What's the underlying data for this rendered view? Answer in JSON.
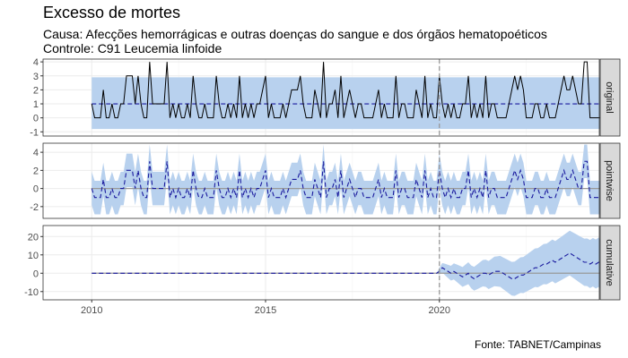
{
  "chart_data": {
    "type": "line",
    "title": "Excesso de mortes",
    "subtitle_line1": "Causa: Afecções hemorrágicas e outras doenças do sangue e dos órgãos hematopoéticos",
    "subtitle_line2": "Controle: C91 Leucemia linfoide",
    "caption": "Fonte: TABNET/Campinas",
    "intervention_x": 2020.0,
    "x_range": [
      2008.6,
      2024.6
    ],
    "x_ticks": [
      2010,
      2015,
      2020
    ],
    "x_tick_labels": [
      "2010",
      "2015",
      "2020"
    ],
    "colors": {
      "band": "#b8d1ee",
      "prediction": "#1a1a9e",
      "observed": "#000000",
      "zero_line": "#999999",
      "intervention": "#999999",
      "strip": "#d9d9d9"
    },
    "panels": [
      {
        "strip_label": "original",
        "ylim": [
          -1.3,
          4.2
        ],
        "y_ticks": [
          -1,
          0,
          1,
          2,
          3,
          4
        ],
        "y_tick_labels": [
          "-1",
          "0",
          "1",
          "2",
          "3",
          "4"
        ],
        "band": {
          "lower": -0.8,
          "upper": 2.9
        },
        "prediction_constant": 1.0,
        "observed": [
          1,
          0,
          0,
          0,
          2,
          0,
          0,
          1,
          0,
          0,
          1,
          1,
          3,
          3,
          3,
          1,
          3,
          1,
          0,
          0,
          4,
          1,
          1,
          1,
          1,
          1,
          4,
          0,
          1,
          0,
          1,
          0,
          0,
          1,
          0,
          3,
          1,
          0,
          0,
          1,
          0,
          0,
          0,
          3,
          1,
          0,
          0,
          1,
          0,
          1,
          0,
          3,
          0,
          1,
          0,
          1,
          0,
          1,
          1,
          2,
          3,
          0,
          1,
          0,
          0,
          0,
          1,
          0,
          1,
          2,
          2,
          2,
          3,
          1,
          0,
          0,
          0,
          2,
          1,
          0,
          4,
          0,
          1,
          1,
          2,
          0,
          3,
          0,
          1,
          2,
          1,
          0,
          1,
          1,
          0,
          0,
          0,
          0,
          1,
          2,
          0,
          1,
          0,
          0,
          0,
          3,
          0,
          1,
          1,
          0,
          0,
          0,
          2,
          1,
          0,
          3,
          0,
          1,
          0,
          0,
          3,
          1,
          0,
          1,
          0,
          1,
          0,
          0,
          1,
          1,
          3,
          0,
          1,
          0,
          1,
          0,
          3,
          0,
          1,
          1,
          0,
          0,
          0,
          0,
          1,
          2,
          3,
          2,
          3,
          2,
          0,
          0,
          0,
          1,
          1,
          0,
          0,
          1,
          0,
          0,
          0,
          1,
          2,
          3,
          2,
          2,
          3,
          2,
          1,
          1,
          4,
          4,
          0,
          0,
          0,
          0,
          0
        ]
      },
      {
        "strip_label": "pointwise",
        "ylim": [
          -3.3,
          5.0
        ],
        "y_ticks": [
          -2,
          0,
          2,
          4
        ],
        "y_tick_labels": [
          "-2",
          "0",
          "2",
          "4"
        ],
        "series": "observed minus prediction",
        "band_halfwidth": 1.85
      },
      {
        "strip_label": "cumulative",
        "ylim": [
          -14.5,
          26.0
        ],
        "y_ticks": [
          -10,
          0,
          10,
          20
        ],
        "y_tick_labels": [
          "-10",
          "0",
          "10",
          "20"
        ],
        "cumulative_post": [
          1,
          3,
          2,
          1,
          0,
          1,
          0,
          -1,
          -2,
          -1,
          0,
          -2,
          -3,
          -2,
          -1,
          0,
          0,
          -1,
          0,
          1,
          1,
          1,
          0,
          -1,
          -2,
          -3,
          -3,
          -2,
          -1,
          -1,
          0,
          1,
          2,
          3,
          3,
          4,
          5,
          5,
          6,
          7,
          6,
          7,
          8,
          9,
          10,
          11,
          10,
          9,
          8,
          7,
          6,
          6,
          5,
          6,
          5,
          6,
          4,
          5
        ]
      }
    ]
  }
}
